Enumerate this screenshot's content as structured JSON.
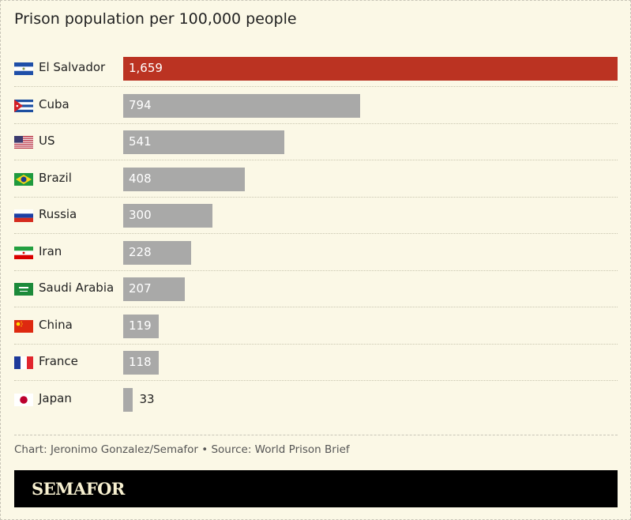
{
  "chart_data": {
    "type": "bar",
    "orientation": "horizontal",
    "title": "Prison population per 100,000 people",
    "categories": [
      "El Salvador",
      "Cuba",
      "US",
      "Brazil",
      "Russia",
      "Iran",
      "Saudi Arabia",
      "China",
      "France",
      "Japan"
    ],
    "values": [
      1659,
      794,
      541,
      408,
      300,
      228,
      207,
      119,
      118,
      33
    ],
    "value_labels": [
      "1,659",
      "794",
      "541",
      "408",
      "300",
      "228",
      "207",
      "119",
      "118",
      "33"
    ],
    "flags": [
      "el-salvador-flag",
      "cuba-flag",
      "us-flag",
      "brazil-flag",
      "russia-flag",
      "iran-flag",
      "saudi-arabia-flag",
      "china-flag",
      "france-flag",
      "japan-flag"
    ],
    "highlight_color": "#bb3322",
    "bar_color": "#a9a9a8",
    "xlim": [
      0,
      1659
    ],
    "grid": false,
    "legend": "none"
  },
  "footer": {
    "credit": "Chart: Jeronimo Gonzalez/Semafor • Source: World Prison Brief",
    "logo": "SEMAFOR"
  }
}
